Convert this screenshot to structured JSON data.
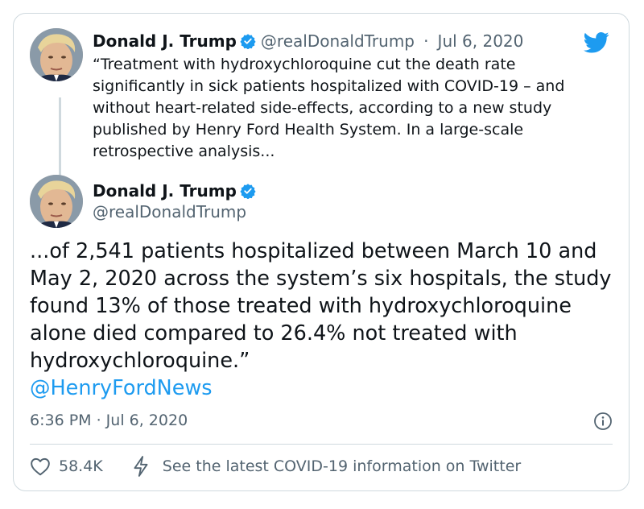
{
  "quoted_tweet": {
    "author_name": "Donald J. Trump",
    "handle": "@realDonaldTrump",
    "separator": "·",
    "date": "Jul 6, 2020",
    "text": "“Treatment with hydroxychloroquine cut the death rate significantly in sick patients hospitalized with COVID-19 – and without heart-related side-effects, according to a new study published by Henry Ford Health System. In a large-scale retrospective analysis..."
  },
  "main_tweet": {
    "author_name": "Donald J. Trump",
    "handle": "@realDonaldTrump",
    "text": "...of 2,541 patients hospitalized between March 10 and May 2, 2020 across the system’s six hospitals, the study found 13% of those treated with hydroxychloroquine alone died compared to 26.4% not treated with hydroxychloroquine.”",
    "mention": "@HenryFordNews",
    "timestamp": "6:36 PM · Jul 6, 2020"
  },
  "footer": {
    "like_count": "58.4K",
    "covid_link": "See the latest COVID-19 information on Twitter"
  },
  "icons": {
    "brand": "twitter-bird-icon",
    "verified": "verified-badge-icon",
    "info": "info-icon",
    "like": "heart-icon",
    "covid": "lightning-bolt-icon"
  },
  "colors": {
    "twitter_blue": "#1d9bf0",
    "text_primary": "#0f1419",
    "text_secondary": "#536471",
    "border": "#cfd9de"
  }
}
